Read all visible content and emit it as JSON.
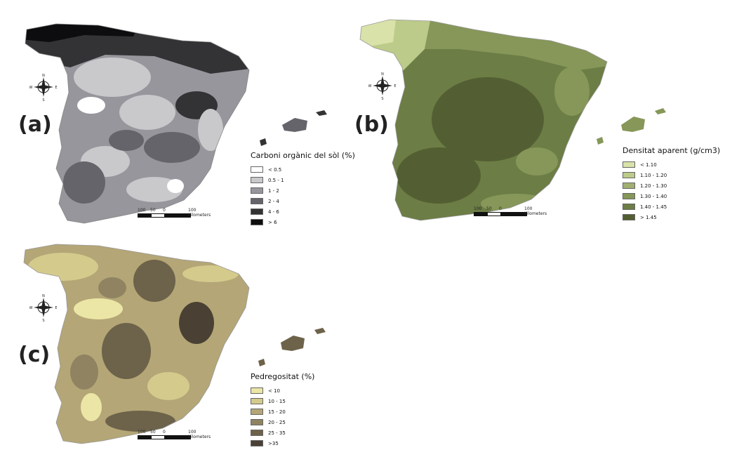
{
  "panels": [
    {
      "id": "a",
      "label": "(a)",
      "legend_title": "Carboni orgànic del sòl (%)",
      "classes": [
        {
          "label": "< 0.5",
          "color": "#ffffff"
        },
        {
          "label": "0.5 - 1",
          "color": "#c9c9cc"
        },
        {
          "label": "1 - 2",
          "color": "#96969c"
        },
        {
          "label": "2 - 4",
          "color": "#64646a"
        },
        {
          "label": "4 - 6",
          "color": "#333336"
        },
        {
          "label": "> 6",
          "color": "#0d0d0f"
        }
      ]
    },
    {
      "id": "b",
      "label": "(b)",
      "legend_title": "Densitat aparent (g/cm3)",
      "classes": [
        {
          "label": "< 1.10",
          "color": "#d9e2a8"
        },
        {
          "label": "1.10 - 1.20",
          "color": "#bccb89"
        },
        {
          "label": "1.20 - 1.30",
          "color": "#a1b070"
        },
        {
          "label": "1.30 - 1.40",
          "color": "#869759"
        },
        {
          "label": "1.40 - 1.45",
          "color": "#6c7d45"
        },
        {
          "label": "> 1.45",
          "color": "#535f33"
        }
      ]
    },
    {
      "id": "c",
      "label": "(c)",
      "legend_title": "Pedregositat (%)",
      "classes": [
        {
          "label": "< 10",
          "color": "#ebe6a6"
        },
        {
          "label": "10 - 15",
          "color": "#d4ca8c"
        },
        {
          "label": "15 - 20",
          "color": "#b4a676"
        },
        {
          "label": "20 - 25",
          "color": "#8f8361"
        },
        {
          "label": "25 - 35",
          "color": "#6d624a"
        },
        {
          "label": ">35",
          "color": "#4a4134"
        }
      ]
    }
  ],
  "scale": {
    "ticks": [
      "100",
      "50",
      "0",
      "100 Kilometers"
    ]
  },
  "compass": {
    "n": "N",
    "s": "S",
    "e": "E",
    "w": "W"
  }
}
